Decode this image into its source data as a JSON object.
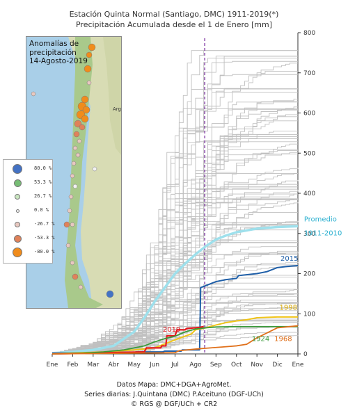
{
  "titles": {
    "line1": "Estación Quinta Normal (Santiago, DMC)  1911-2019(*)",
    "line2": "Precipitación Acumulada desde el 1 de Enero [mm]"
  },
  "map": {
    "title_lines": [
      "Anomalías de",
      "precipitación",
      "14-Agosto-2019"
    ],
    "region_labels": [
      "Arg"
    ],
    "colors": {
      "water": "#a9cfe8",
      "land": "#d8dcb4",
      "land_green": "#a9c98b"
    }
  },
  "legend": [
    {
      "label": "80.0 %",
      "color": "#4472c4",
      "size": 14
    },
    {
      "label": "53.3 %",
      "color": "#76bd74",
      "size": 11
    },
    {
      "label": "26.7 %",
      "color": "#c9e6c0",
      "size": 8
    },
    {
      "label": "0.0 %",
      "color": "#f2f2f2",
      "size": 5
    },
    {
      "label": "-26.7 %",
      "color": "#e8c8c0",
      "size": 8
    },
    {
      "label": "-53.3 %",
      "color": "#e0825a",
      "size": 11
    },
    {
      "label": "-80.0 %",
      "color": "#f08c1c",
      "size": 14
    }
  ],
  "footer": {
    "line1": "Datos Mapa: DMC+DGA+AgroMet.",
    "line2": "Series diarias: J.Quintana (DMC) P.Aceituno (DGF-UCh)",
    "line3": "© RGS @ DGF/UCh + CR2"
  },
  "chart_data": {
    "type": "line",
    "x_unit": "month",
    "categories": [
      "Ene",
      "Feb",
      "Mar",
      "Abr",
      "May",
      "Jun",
      "Jul",
      "Ago",
      "Sep",
      "Oct",
      "Nov",
      "Dic",
      "Ene"
    ],
    "ylim": [
      0,
      800
    ],
    "yticks": [
      0,
      100,
      200,
      300,
      400,
      500,
      600,
      700,
      800
    ],
    "vline_x": 7.45,
    "vline_color": "#7b2fa0",
    "colors": {
      "background_series": "#c0c0c0",
      "promedio": "#9ee0ec",
      "y2015": "#1f5fa8",
      "y1998": "#f0c419",
      "y2019": "#e6191e",
      "y1924": "#3a9a3a",
      "y1968": "#e0701a"
    },
    "annotations": [
      {
        "text": "Promedio",
        "x": 12.3,
        "y": 330,
        "color": "#2bb0d0",
        "size": 10
      },
      {
        "text": "1911-2010",
        "x": 12.3,
        "y": 295,
        "color": "#2bb0d0",
        "size": 10
      },
      {
        "text": "2015",
        "x": 11.15,
        "y": 232,
        "color": "#1f5fa8",
        "size": 10
      },
      {
        "text": "1998",
        "x": 11.1,
        "y": 110,
        "color": "#d8a800",
        "size": 10
      },
      {
        "text": "2019",
        "x": 5.4,
        "y": 55,
        "color": "#e6191e",
        "size": 10
      },
      {
        "text": "1924",
        "x": 9.75,
        "y": 32,
        "color": "#3a9a3a",
        "size": 10
      },
      {
        "text": "1968",
        "x": 10.85,
        "y": 32,
        "color": "#e0701a",
        "size": 10
      }
    ],
    "series": [
      {
        "name": "Promedio 1911-2010",
        "x": [
          0,
          1,
          2,
          3,
          4,
          4.5,
          5,
          5.5,
          6,
          6.5,
          7,
          7.5,
          8,
          8.5,
          9,
          10,
          11,
          12
        ],
        "y": [
          2,
          5,
          10,
          20,
          55,
          90,
          130,
          165,
          200,
          225,
          248,
          268,
          285,
          295,
          303,
          312,
          316,
          318
        ]
      },
      {
        "name": "2015",
        "x": [
          0,
          2.9,
          3.0,
          4.0,
          4.1,
          5.4,
          5.5,
          6.3,
          6.35,
          7.2,
          7.25,
          7.5,
          8.0,
          8.5,
          9.0,
          9.1,
          10.0,
          10.5,
          11.0,
          11.5,
          12.0
        ],
        "y": [
          2,
          2,
          4,
          4,
          5,
          5,
          7,
          7,
          10,
          10,
          165,
          170,
          180,
          185,
          188,
          195,
          200,
          205,
          215,
          218,
          220
        ]
      },
      {
        "name": "1998",
        "x": [
          0,
          2.5,
          4.0,
          5.0,
          6.0,
          6.8,
          7.0,
          7.5,
          8.0,
          8.5,
          9.0,
          9.5,
          10.0,
          11.0,
          12.0
        ],
        "y": [
          0,
          5,
          10,
          15,
          35,
          50,
          60,
          65,
          72,
          78,
          82,
          85,
          90,
          92,
          92
        ]
      },
      {
        "name": "2019",
        "x": [
          0,
          4.5,
          4.6,
          5.3,
          5.35,
          5.55,
          5.6,
          6.0,
          6.1,
          6.5,
          6.55,
          7.0,
          7.2,
          7.4
        ],
        "y": [
          0,
          5,
          15,
          15,
          20,
          20,
          45,
          45,
          60,
          60,
          63,
          65,
          66,
          68
        ]
      },
      {
        "name": "1924",
        "x": [
          0,
          1.5,
          2.5,
          3.5,
          4.5,
          5.0,
          5.5,
          6.0,
          6.5,
          7.0,
          7.5,
          8.0,
          9.0,
          10.0,
          11.0,
          12.0
        ],
        "y": [
          0,
          2,
          5,
          10,
          20,
          30,
          38,
          44,
          55,
          62,
          65,
          67,
          68,
          68,
          68,
          68
        ]
      },
      {
        "name": "1968",
        "x": [
          0,
          6.0,
          6.2,
          7.0,
          7.5,
          8.0,
          8.5,
          9.0,
          9.5,
          10.0,
          11.0,
          12.0
        ],
        "y": [
          0,
          3,
          8,
          12,
          14,
          16,
          18,
          20,
          24,
          40,
          65,
          70
        ]
      }
    ]
  }
}
